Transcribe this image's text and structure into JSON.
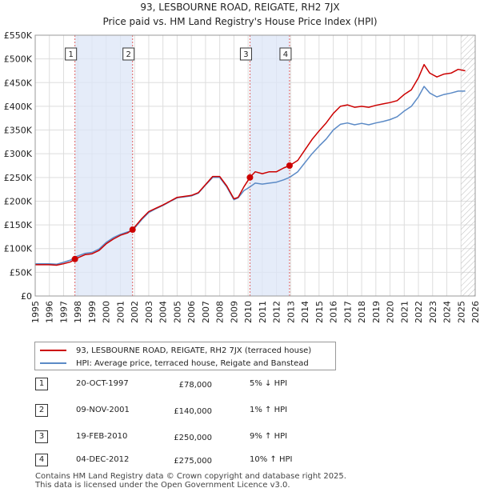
{
  "chart_data": {
    "type": "line",
    "title": "93, LESBOURNE ROAD, REIGATE, RH2 7JX",
    "subtitle": "Price paid vs. HM Land Registry's House Price Index (HPI)",
    "xlabel": "",
    "ylabel": "",
    "xlim": [
      1995,
      2026
    ],
    "ylim": [
      0,
      550000
    ],
    "x_ticks": [
      "1995",
      "1996",
      "1997",
      "1998",
      "1999",
      "2000",
      "2001",
      "2002",
      "2003",
      "2004",
      "2005",
      "2006",
      "2007",
      "2008",
      "2009",
      "2010",
      "2011",
      "2012",
      "2013",
      "2014",
      "2015",
      "2016",
      "2017",
      "2018",
      "2019",
      "2020",
      "2021",
      "2022",
      "2023",
      "2024",
      "2025",
      "2026"
    ],
    "y_ticks": [
      {
        "value": 0,
        "label": "£0"
      },
      {
        "value": 50000,
        "label": "£50K"
      },
      {
        "value": 100000,
        "label": "£100K"
      },
      {
        "value": 150000,
        "label": "£150K"
      },
      {
        "value": 200000,
        "label": "£200K"
      },
      {
        "value": 250000,
        "label": "£250K"
      },
      {
        "value": 300000,
        "label": "£300K"
      },
      {
        "value": 350000,
        "label": "£350K"
      },
      {
        "value": 400000,
        "label": "£400K"
      },
      {
        "value": 450000,
        "label": "£450K"
      },
      {
        "value": 500000,
        "label": "£500K"
      },
      {
        "value": 550000,
        "label": "£550K"
      }
    ],
    "grid": true,
    "shaded_periods": [
      [
        1997.8,
        2001.86
      ],
      [
        2010.13,
        2012.92
      ]
    ],
    "future_hatch_from": 2025.0,
    "series": [
      {
        "name": "93, LESBOURNE ROAD, REIGATE, RH2 7JX (terraced house)",
        "color": "#cc0000",
        "points": [
          [
            1995.0,
            66000
          ],
          [
            1996.0,
            66000
          ],
          [
            1996.5,
            65000
          ],
          [
            1997.0,
            68000
          ],
          [
            1997.5,
            72000
          ],
          [
            1997.8,
            78000
          ],
          [
            1998.5,
            87000
          ],
          [
            1999.0,
            89000
          ],
          [
            1999.5,
            96000
          ],
          [
            2000.0,
            110000
          ],
          [
            2000.5,
            120000
          ],
          [
            2001.0,
            128000
          ],
          [
            2001.5,
            133000
          ],
          [
            2001.86,
            140000
          ],
          [
            2002.5,
            163000
          ],
          [
            2003.0,
            178000
          ],
          [
            2003.5,
            185000
          ],
          [
            2004.0,
            192000
          ],
          [
            2004.5,
            200000
          ],
          [
            2005.0,
            208000
          ],
          [
            2005.5,
            210000
          ],
          [
            2006.0,
            212000
          ],
          [
            2006.5,
            218000
          ],
          [
            2007.0,
            235000
          ],
          [
            2007.5,
            252000
          ],
          [
            2008.0,
            252000
          ],
          [
            2008.5,
            232000
          ],
          [
            2009.0,
            205000
          ],
          [
            2009.3,
            208000
          ],
          [
            2009.7,
            230000
          ],
          [
            2010.13,
            250000
          ],
          [
            2010.5,
            262000
          ],
          [
            2011.0,
            258000
          ],
          [
            2011.5,
            262000
          ],
          [
            2012.0,
            262000
          ],
          [
            2012.5,
            270000
          ],
          [
            2012.92,
            275000
          ],
          [
            2013.5,
            286000
          ],
          [
            2014.0,
            308000
          ],
          [
            2014.5,
            330000
          ],
          [
            2015.0,
            348000
          ],
          [
            2015.5,
            365000
          ],
          [
            2016.0,
            385000
          ],
          [
            2016.5,
            400000
          ],
          [
            2017.0,
            403000
          ],
          [
            2017.5,
            398000
          ],
          [
            2018.0,
            400000
          ],
          [
            2018.5,
            398000
          ],
          [
            2019.0,
            402000
          ],
          [
            2019.5,
            405000
          ],
          [
            2020.0,
            408000
          ],
          [
            2020.5,
            412000
          ],
          [
            2021.0,
            425000
          ],
          [
            2021.5,
            435000
          ],
          [
            2022.0,
            460000
          ],
          [
            2022.4,
            488000
          ],
          [
            2022.8,
            470000
          ],
          [
            2023.3,
            462000
          ],
          [
            2023.8,
            468000
          ],
          [
            2024.3,
            470000
          ],
          [
            2024.8,
            478000
          ],
          [
            2025.3,
            475000
          ]
        ]
      },
      {
        "name": "HPI: Average price, terraced house, Reigate and Banstead",
        "color": "#5b8ac6",
        "points": [
          [
            1995.0,
            68000
          ],
          [
            1996.0,
            68000
          ],
          [
            1996.5,
            67000
          ],
          [
            1997.0,
            71000
          ],
          [
            1997.5,
            76000
          ],
          [
            1997.8,
            82000
          ],
          [
            1998.5,
            90000
          ],
          [
            1999.0,
            92000
          ],
          [
            1999.5,
            99000
          ],
          [
            2000.0,
            113000
          ],
          [
            2000.5,
            123000
          ],
          [
            2001.0,
            130000
          ],
          [
            2001.5,
            135000
          ],
          [
            2001.86,
            138000
          ],
          [
            2002.5,
            161000
          ],
          [
            2003.0,
            176000
          ],
          [
            2003.5,
            184000
          ],
          [
            2004.0,
            191000
          ],
          [
            2004.5,
            199000
          ],
          [
            2005.0,
            207000
          ],
          [
            2005.5,
            209000
          ],
          [
            2006.0,
            211000
          ],
          [
            2006.5,
            217000
          ],
          [
            2007.0,
            234000
          ],
          [
            2007.5,
            250000
          ],
          [
            2008.0,
            250000
          ],
          [
            2008.5,
            230000
          ],
          [
            2009.0,
            203000
          ],
          [
            2009.3,
            207000
          ],
          [
            2009.7,
            222000
          ],
          [
            2010.13,
            230000
          ],
          [
            2010.5,
            238000
          ],
          [
            2011.0,
            236000
          ],
          [
            2011.5,
            238000
          ],
          [
            2012.0,
            240000
          ],
          [
            2012.5,
            245000
          ],
          [
            2012.92,
            250000
          ],
          [
            2013.5,
            262000
          ],
          [
            2014.0,
            281000
          ],
          [
            2014.5,
            300000
          ],
          [
            2015.0,
            316000
          ],
          [
            2015.5,
            331000
          ],
          [
            2016.0,
            350000
          ],
          [
            2016.5,
            362000
          ],
          [
            2017.0,
            365000
          ],
          [
            2017.5,
            361000
          ],
          [
            2018.0,
            364000
          ],
          [
            2018.5,
            361000
          ],
          [
            2019.0,
            365000
          ],
          [
            2019.5,
            368000
          ],
          [
            2020.0,
            372000
          ],
          [
            2020.5,
            378000
          ],
          [
            2021.0,
            390000
          ],
          [
            2021.5,
            400000
          ],
          [
            2022.0,
            420000
          ],
          [
            2022.4,
            442000
          ],
          [
            2022.8,
            428000
          ],
          [
            2023.3,
            420000
          ],
          [
            2023.8,
            425000
          ],
          [
            2024.3,
            428000
          ],
          [
            2024.8,
            432000
          ],
          [
            2025.3,
            432000
          ]
        ]
      }
    ],
    "sales": [
      {
        "num": "1",
        "x": 1997.8,
        "price": 78000
      },
      {
        "num": "2",
        "x": 2001.86,
        "price": 140000
      },
      {
        "num": "3",
        "x": 2010.13,
        "price": 250000
      },
      {
        "num": "4",
        "x": 2012.92,
        "price": 275000
      }
    ]
  },
  "legend": {
    "property_label": "93, LESBOURNE ROAD, REIGATE, RH2 7JX (terraced house)",
    "hpi_label": "HPI: Average price, terraced house, Reigate and Banstead",
    "property_color": "#cc0000",
    "hpi_color": "#5b8ac6"
  },
  "transactions": [
    {
      "num": "1",
      "date": "20-OCT-1997",
      "price": "£78,000",
      "hpi": "5% ↓ HPI"
    },
    {
      "num": "2",
      "date": "09-NOV-2001",
      "price": "£140,000",
      "hpi": "1% ↑ HPI"
    },
    {
      "num": "3",
      "date": "19-FEB-2010",
      "price": "£250,000",
      "hpi": "9% ↑ HPI"
    },
    {
      "num": "4",
      "date": "04-DEC-2012",
      "price": "£275,000",
      "hpi": "10% ↑ HPI"
    }
  ],
  "footer": {
    "line1": "Contains HM Land Registry data © Crown copyright and database right 2025.",
    "line2": "This data is licensed under the Open Government Licence v3.0."
  }
}
